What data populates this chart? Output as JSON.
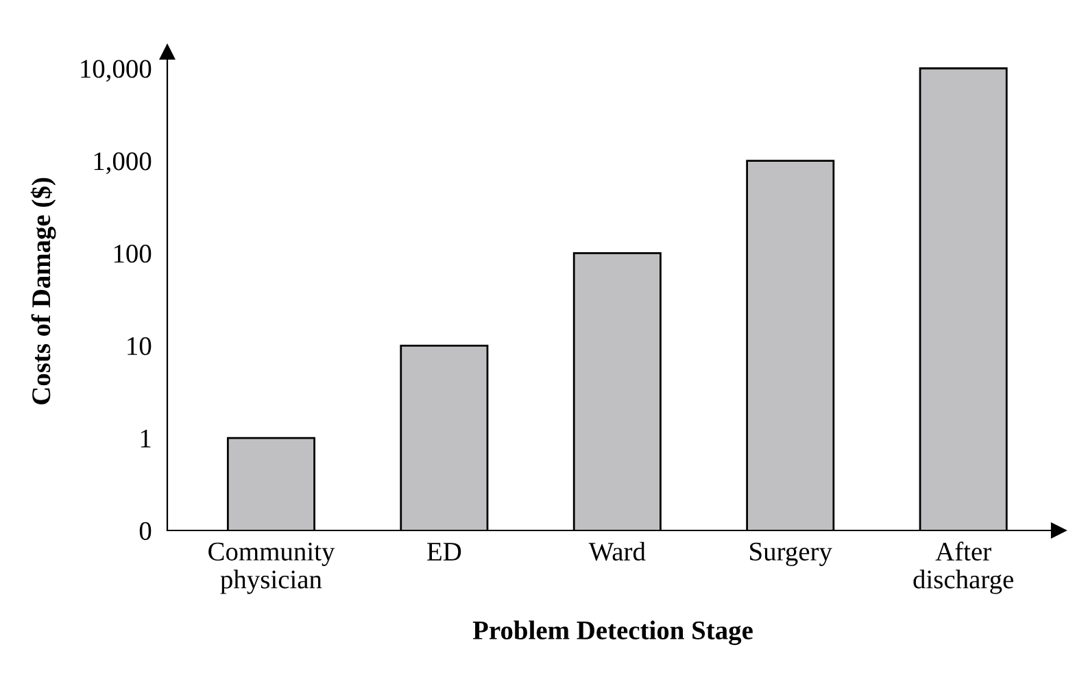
{
  "chart_data": {
    "type": "bar",
    "xlabel": "Problem Detection Stage",
    "ylabel": "Costs of Damage ($)",
    "categories": [
      "Community\nphysician",
      "ED",
      "Ward",
      "Surgery",
      "After\ndischarge"
    ],
    "values": [
      1,
      10,
      100,
      1000,
      10000
    ],
    "color": "#c0c0c2",
    "log": true,
    "ylim": [
      0.1,
      15000
    ],
    "yticks": [
      {
        "value": 0.1,
        "label": "0"
      },
      1,
      10,
      100,
      {
        "value": 1000,
        "label": "1,000"
      },
      {
        "value": 10000,
        "label": "10,000"
      }
    ],
    "grid": false
  }
}
